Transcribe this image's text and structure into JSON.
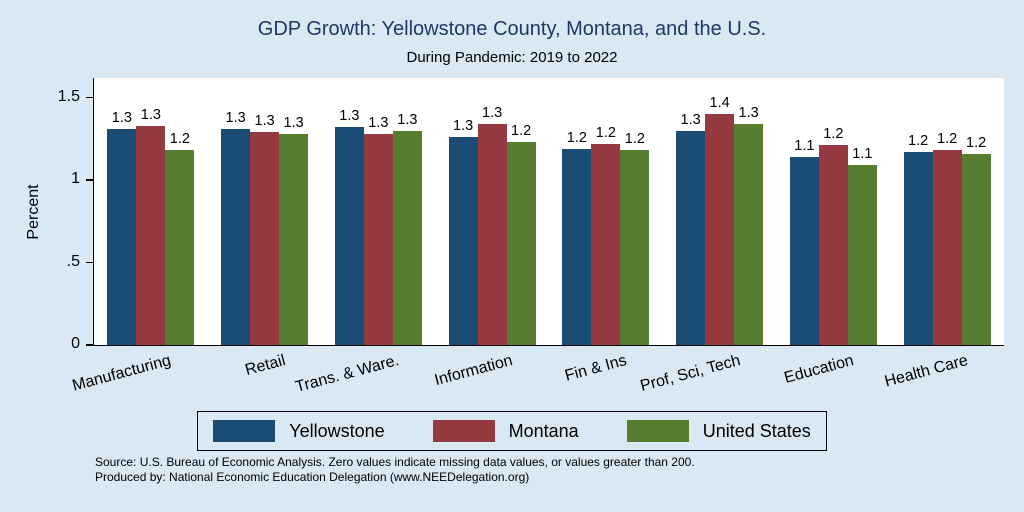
{
  "title": "GDP Growth: Yellowstone County, Montana, and the U.S.",
  "subtitle": "During Pandemic: 2019 to 2022",
  "ylabel": "Percent",
  "notes": {
    "line1": "Source: U.S. Bureau of Economic Analysis. Zero values indicate missing data values, or values greater than 200.",
    "line2": "Produced by: National Economic Education Delegation (www.NEEDelegation.org)"
  },
  "colors": {
    "background": "#d9e8f3",
    "plot_background": "#ffffff",
    "title": "#1f3864",
    "axis": "#000000",
    "legend_background": "#d9e8f3"
  },
  "chart_data": {
    "type": "bar",
    "title": "GDP Growth: Yellowstone County, Montana, and the U.S.",
    "subtitle": "During Pandemic: 2019 to 2022",
    "xlabel": "",
    "ylabel": "Percent",
    "categories": [
      "Manufacturing",
      "Retail",
      "Trans. & Ware.",
      "Information",
      "Fin & Ins",
      "Prof, Sci, Tech",
      "Education",
      "Health Care"
    ],
    "series": [
      {
        "name": "Yellowstone",
        "color": "#1b4c74",
        "values": [
          1.31,
          1.31,
          1.32,
          1.26,
          1.19,
          1.3,
          1.14,
          1.17
        ],
        "labels": [
          "1.3",
          "1.3",
          "1.3",
          "1.3",
          "1.2",
          "1.3",
          "1.1",
          "1.2"
        ]
      },
      {
        "name": "Montana",
        "color": "#943a40",
        "values": [
          1.33,
          1.29,
          1.28,
          1.34,
          1.22,
          1.4,
          1.21,
          1.18
        ],
        "labels": [
          "1.3",
          "1.3",
          "1.3",
          "1.3",
          "1.2",
          "1.4",
          "1.2",
          "1.2"
        ]
      },
      {
        "name": "United States",
        "color": "#567c2f",
        "values": [
          1.18,
          1.28,
          1.3,
          1.23,
          1.18,
          1.34,
          1.09,
          1.16
        ],
        "labels": [
          "1.2",
          "1.3",
          "1.3",
          "1.2",
          "1.2",
          "1.3",
          "1.1",
          "1.2"
        ]
      }
    ],
    "ylim": [
      0,
      1.6
    ],
    "yticks": [
      "0",
      ".5",
      "1",
      "1.5"
    ],
    "grid": false,
    "legend_position": "bottom"
  }
}
